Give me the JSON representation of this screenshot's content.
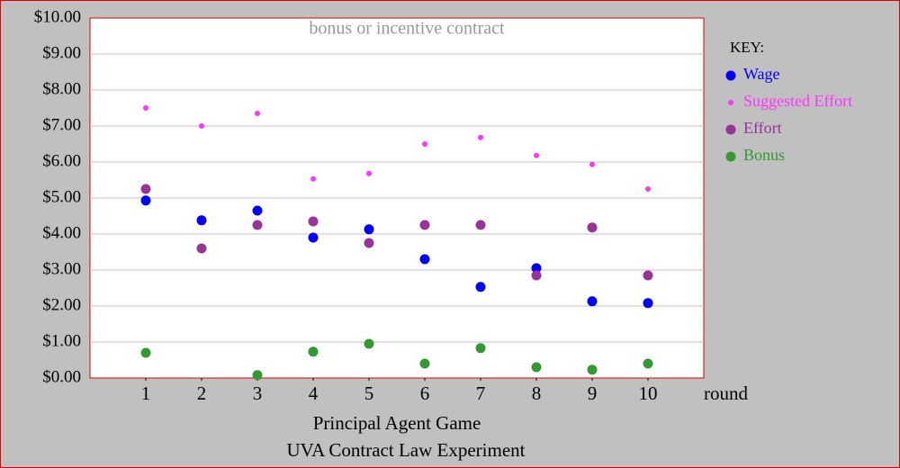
{
  "chart_data": {
    "type": "scatter",
    "title": "bonus or incentive contract",
    "subtitle": [
      "Principal Agent Game",
      "UVA Contract Law Experiment"
    ],
    "x_label": "round",
    "legend_title": "KEY:",
    "legend_position": "right",
    "grid": true,
    "x": [
      1,
      2,
      3,
      4,
      5,
      6,
      7,
      8,
      9,
      10
    ],
    "xlim": [
      0,
      11
    ],
    "xticks": [
      1,
      2,
      3,
      4,
      5,
      6,
      7,
      8,
      9,
      10
    ],
    "ylim": [
      0,
      10
    ],
    "yticks": [
      {
        "value": 0,
        "label": "$0.00"
      },
      {
        "value": 1,
        "label": "$1.00"
      },
      {
        "value": 2,
        "label": "$2.00"
      },
      {
        "value": 3,
        "label": "$3.00"
      },
      {
        "value": 4,
        "label": "$4.00"
      },
      {
        "value": 5,
        "label": "$5.00"
      },
      {
        "value": 6,
        "label": "$6.00"
      },
      {
        "value": 7,
        "label": "$7.00"
      },
      {
        "value": 8,
        "label": "$8.00"
      },
      {
        "value": 9,
        "label": "$9.00"
      },
      {
        "value": 10,
        "label": "$10.00"
      }
    ],
    "series": [
      {
        "name": "Wage",
        "color": "#0000ff",
        "marker_size": 5.5,
        "values": [
          4.93,
          4.38,
          4.65,
          3.9,
          4.13,
          3.3,
          2.53,
          3.05,
          2.13,
          2.08
        ]
      },
      {
        "name": "Suggested Effort",
        "color": "#ff33ff",
        "marker_size": 3,
        "values": [
          7.5,
          7.0,
          7.35,
          5.53,
          5.68,
          6.5,
          6.68,
          6.18,
          5.93,
          5.25
        ]
      },
      {
        "name": "Effort",
        "color": "#993399",
        "marker_size": 5.5,
        "values": [
          5.25,
          3.6,
          4.25,
          4.35,
          3.75,
          4.25,
          4.25,
          2.85,
          4.18,
          2.85
        ]
      },
      {
        "name": "Bonus",
        "color": "#339933",
        "marker_size": 5.5,
        "values": [
          0.7,
          null,
          0.08,
          0.73,
          0.95,
          0.4,
          0.83,
          0.3,
          0.23,
          0.4
        ]
      }
    ]
  }
}
